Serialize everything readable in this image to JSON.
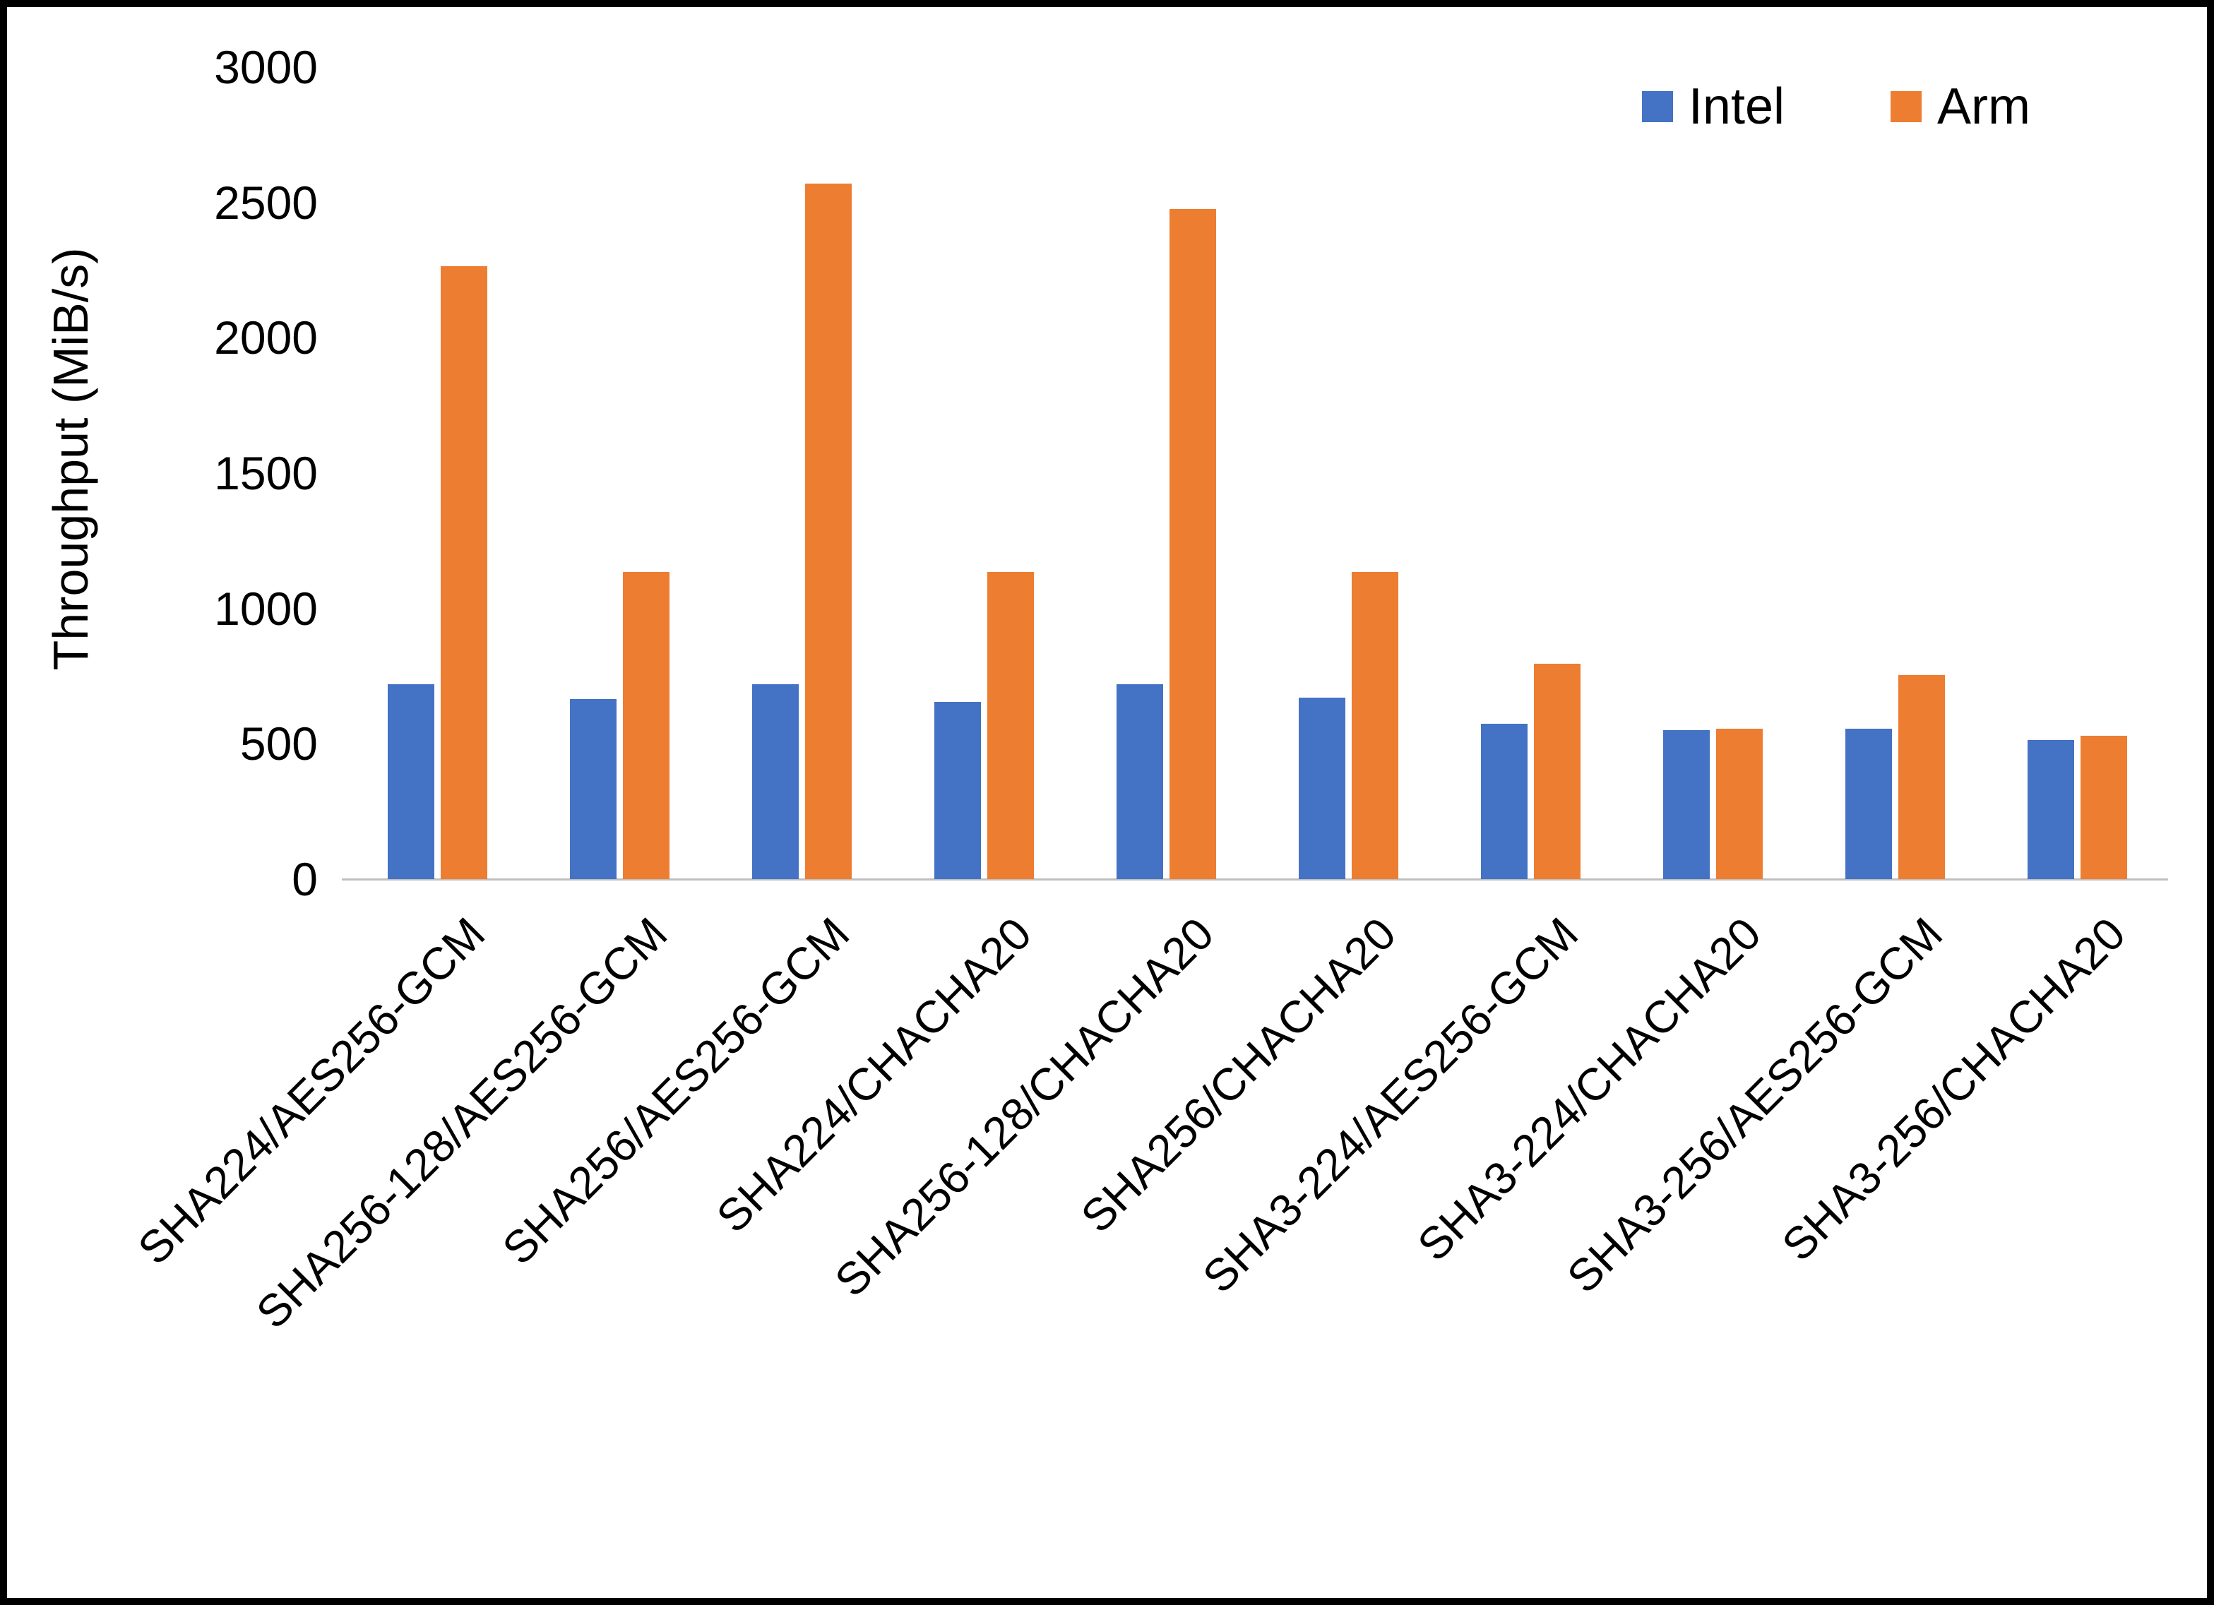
{
  "chart_data": {
    "type": "bar",
    "title": "",
    "xlabel": "",
    "ylabel": "Throughput (MiB/s)",
    "ylim": [
      0,
      3000
    ],
    "yticks": [
      0,
      500,
      1000,
      1500,
      2000,
      2500,
      3000
    ],
    "grid": false,
    "legend_position": "top-right",
    "categories": [
      "SHA224/AES256-GCM",
      "SHA256-128/AES256-GCM",
      "SHA256/AES256-GCM",
      "SHA224/CHACHA20",
      "SHA256-128/CHACHA20",
      "SHA256/CHACHA20",
      "SHA3-224/AES256-GCM",
      "SHA3-224/CHACHA20",
      "SHA3-256/AES256-GCM",
      "SHA3-256/CHACHA20"
    ],
    "series": [
      {
        "name": "Intel",
        "color": "#4472C4",
        "values": [
          720,
          665,
          720,
          655,
          720,
          670,
          575,
          550,
          555,
          515
        ]
      },
      {
        "name": "Arm",
        "color": "#ED7D31",
        "values": [
          2265,
          1135,
          2570,
          1135,
          2475,
          1135,
          795,
          555,
          755,
          530
        ]
      }
    ]
  },
  "colors": {
    "axis_line": "#bfbfbf",
    "text": "#000000",
    "background": "#ffffff"
  }
}
